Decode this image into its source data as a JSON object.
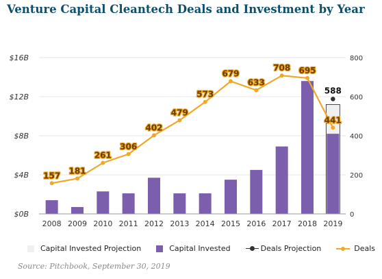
{
  "page": {
    "title": "Venture Capital Cleantech Deals and Investment by Year",
    "source": "Source: Pitchbook, September 30, 2019"
  },
  "legend": {
    "items": [
      {
        "key": "capital_projection",
        "label": "Capital Invested Projection"
      },
      {
        "key": "capital",
        "label": "Capital Invested"
      },
      {
        "key": "deals_projection",
        "label": "Deals Projection"
      },
      {
        "key": "deals",
        "label": "Deals"
      }
    ]
  },
  "colors": {
    "bars": "#7b5fac",
    "projection_box": "#f0f0f0",
    "line": "#f0a828",
    "deals_projection": "#333333",
    "data_label": "#6b3d00",
    "axis_text": "#333333",
    "grid": "#e6e6e6"
  },
  "chart_data": {
    "type": "bar",
    "categories": [
      "2008",
      "2009",
      "2010",
      "2011",
      "2012",
      "2013",
      "2014",
      "2015",
      "2016",
      "2017",
      "2018",
      "2019"
    ],
    "left_axis": {
      "ticks": [
        "$0B",
        "$4B",
        "$8B",
        "$12B",
        "$16B"
      ],
      "tick_values": [
        0,
        4,
        8,
        12,
        16
      ],
      "ylim": [
        0,
        16
      ]
    },
    "right_axis": {
      "ticks": [
        "0",
        "200",
        "400",
        "600",
        "800"
      ],
      "tick_values": [
        0,
        200,
        400,
        600,
        800
      ],
      "ylim": [
        0,
        800
      ]
    },
    "grid": true,
    "legend_position": "bottom",
    "series": [
      {
        "name": "Capital Invested",
        "type": "bar",
        "axis": "left",
        "values": [
          1.4,
          0.7,
          2.3,
          2.1,
          3.7,
          2.1,
          2.1,
          3.5,
          4.5,
          6.9,
          13.6,
          8.2
        ]
      },
      {
        "name": "Capital Invested Projection",
        "type": "bar",
        "axis": "left",
        "values": [
          null,
          null,
          null,
          null,
          null,
          null,
          null,
          null,
          null,
          null,
          null,
          11.2
        ]
      },
      {
        "name": "Deals",
        "type": "line",
        "axis": "right",
        "values": [
          157,
          181,
          261,
          306,
          402,
          479,
          573,
          679,
          633,
          708,
          695,
          441
        ],
        "labels": [
          "157",
          "181",
          "261",
          "306",
          "402",
          "479",
          "573",
          "679",
          "633",
          "708",
          "695",
          "441"
        ]
      },
      {
        "name": "Deals Projection",
        "type": "scatter",
        "axis": "right",
        "values": [
          null,
          null,
          null,
          null,
          null,
          null,
          null,
          null,
          null,
          null,
          null,
          588
        ],
        "labels": [
          "",
          "",
          "",
          "",
          "",
          "",
          "",
          "",
          "",
          "",
          "",
          "588"
        ]
      }
    ]
  }
}
